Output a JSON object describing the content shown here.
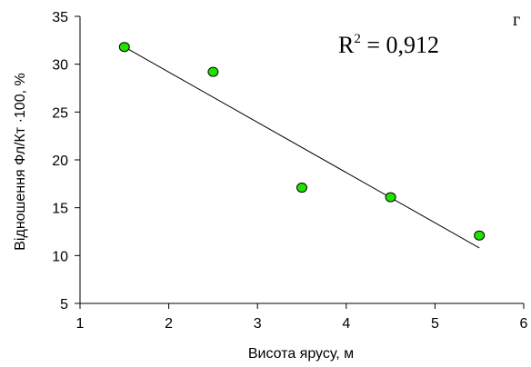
{
  "chart_data": {
    "type": "scatter",
    "title": "",
    "xlabel": "Висота ярусу, м",
    "ylabel": "Відношення Фл/Кт ·100, %",
    "xlim": [
      1,
      6
    ],
    "ylim": [
      5,
      35
    ],
    "xticks": [
      1,
      2,
      3,
      4,
      5,
      6
    ],
    "yticks": [
      5,
      10,
      15,
      20,
      25,
      30,
      35
    ],
    "grid": false,
    "series": [
      {
        "x": [
          1.5,
          2.5,
          3.5,
          4.5,
          5.5
        ],
        "y": [
          31.8,
          29.2,
          17.1,
          16.1,
          12.1
        ],
        "marker_color": "#22e000",
        "marker_edge": "#000000"
      }
    ],
    "trendline": {
      "type": "linear",
      "x": [
        1.5,
        5.5
      ],
      "y": [
        31.8,
        10.8
      ],
      "color": "#000000"
    },
    "annotations": {
      "r2_base": "R",
      "r2_sup": "2",
      "r2_value": " = 0,912",
      "panel_letter": "г"
    }
  }
}
